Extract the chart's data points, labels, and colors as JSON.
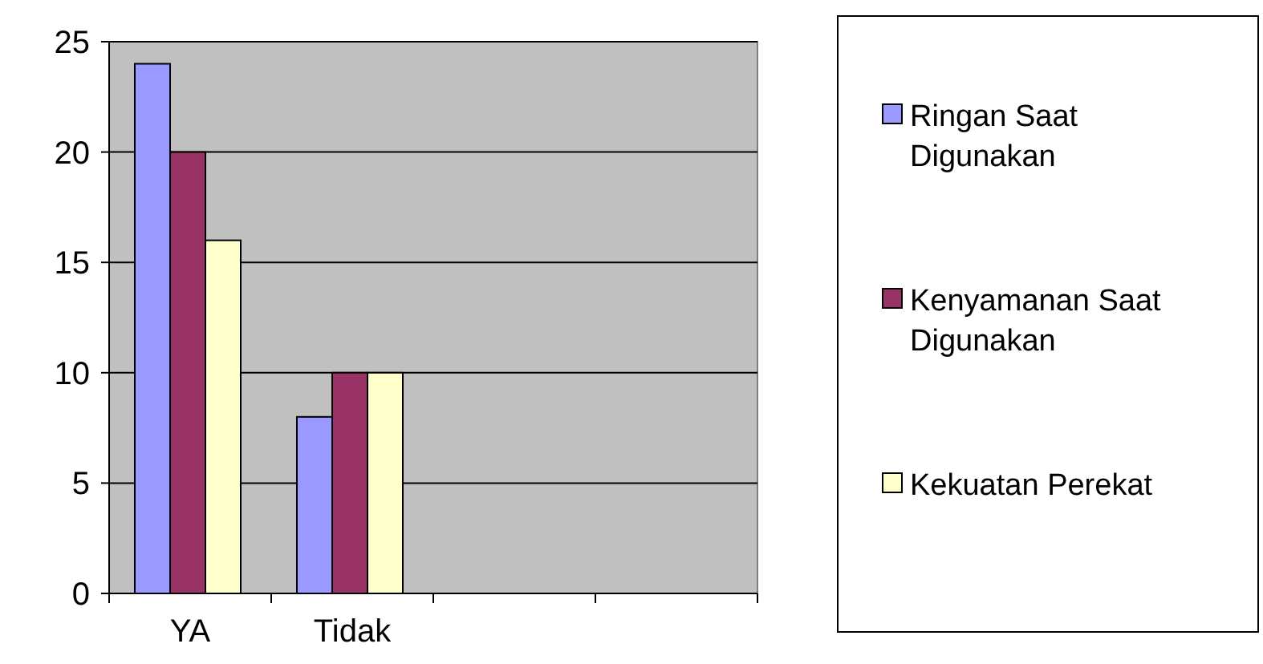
{
  "chart_data": {
    "type": "bar",
    "categories": [
      "YA",
      "Tidak",
      null,
      null
    ],
    "series": [
      {
        "name": "Ringan Saat Digunakan",
        "color": "#9999ff",
        "values": [
          24,
          8,
          null,
          null
        ]
      },
      {
        "name": "Kenyamanan Saat Digunakan",
        "color": "#993366",
        "values": [
          20,
          10,
          null,
          null
        ]
      },
      {
        "name": "Kekuatan Perekat",
        "color": "#ffffcc",
        "values": [
          16,
          10,
          null,
          null
        ]
      }
    ],
    "ylim": [
      0,
      25
    ],
    "yticks": [
      0,
      5,
      10,
      15,
      20,
      25
    ],
    "grid": "y",
    "legend": "right"
  }
}
